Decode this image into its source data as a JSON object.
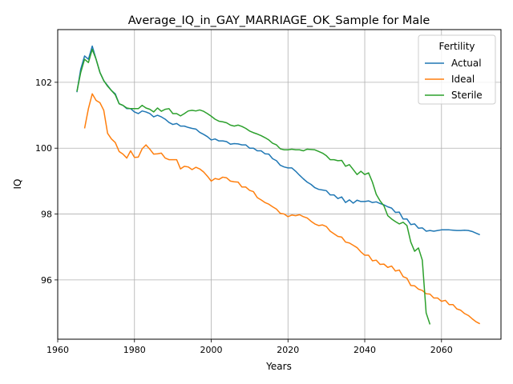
{
  "chart_data": {
    "type": "line",
    "title": "Average_IQ_in_GAY_MARRIAGE_OK_Sample for Male",
    "xlabel": "Years",
    "ylabel": "IQ",
    "xlim": [
      1960,
      2075.5
    ],
    "ylim": [
      94.2,
      103.6
    ],
    "xticks": [
      1960,
      1980,
      2000,
      2020,
      2040,
      2060
    ],
    "yticks": [
      96,
      98,
      100,
      102
    ],
    "grid": true,
    "legend": {
      "title": "Fertility",
      "placement": "top-right"
    },
    "series": [
      {
        "name": "Actual",
        "color": "#1f77b4",
        "points": [
          [
            1965,
            101.7
          ],
          [
            1966,
            102.4
          ],
          [
            1967,
            102.8
          ],
          [
            1968,
            102.7
          ],
          [
            1969,
            103.1
          ],
          [
            1970,
            102.7
          ],
          [
            1971,
            102.3
          ],
          [
            1972,
            102.05
          ],
          [
            1973,
            101.9
          ],
          [
            1974,
            101.75
          ],
          [
            1975,
            101.65
          ],
          [
            1976,
            101.35
          ],
          [
            1977,
            101.3
          ],
          [
            1978,
            101.2
          ],
          [
            1979,
            101.2
          ],
          [
            1980,
            101.1
          ],
          [
            1981,
            101.05
          ],
          [
            1982,
            101.13
          ],
          [
            1983,
            101.1
          ],
          [
            1984,
            101.05
          ],
          [
            1985,
            100.95
          ],
          [
            1986,
            101.0
          ],
          [
            1987,
            100.95
          ],
          [
            1988,
            100.88
          ],
          [
            1989,
            100.78
          ],
          [
            1990,
            100.72
          ],
          [
            1991,
            100.75
          ],
          [
            1992,
            100.67
          ],
          [
            1993,
            100.67
          ],
          [
            1994,
            100.63
          ],
          [
            1995,
            100.6
          ],
          [
            1996,
            100.58
          ],
          [
            1997,
            100.48
          ],
          [
            1998,
            100.42
          ],
          [
            1999,
            100.35
          ],
          [
            2000,
            100.25
          ],
          [
            2001,
            100.28
          ],
          [
            2002,
            100.22
          ],
          [
            2003,
            100.22
          ],
          [
            2004,
            100.2
          ],
          [
            2005,
            100.12
          ],
          [
            2006,
            100.14
          ],
          [
            2007,
            100.13
          ],
          [
            2008,
            100.1
          ],
          [
            2009,
            100.1
          ],
          [
            2010,
            100.0
          ],
          [
            2011,
            100.0
          ],
          [
            2012,
            99.92
          ],
          [
            2013,
            99.92
          ],
          [
            2014,
            99.83
          ],
          [
            2015,
            99.82
          ],
          [
            2016,
            99.68
          ],
          [
            2017,
            99.62
          ],
          [
            2018,
            99.48
          ],
          [
            2019,
            99.43
          ],
          [
            2020,
            99.4
          ],
          [
            2021,
            99.4
          ],
          [
            2022,
            99.3
          ],
          [
            2023,
            99.18
          ],
          [
            2024,
            99.07
          ],
          [
            2025,
            98.97
          ],
          [
            2026,
            98.9
          ],
          [
            2027,
            98.8
          ],
          [
            2028,
            98.75
          ],
          [
            2029,
            98.73
          ],
          [
            2030,
            98.71
          ],
          [
            2031,
            98.58
          ],
          [
            2032,
            98.58
          ],
          [
            2033,
            98.47
          ],
          [
            2034,
            98.52
          ],
          [
            2035,
            98.35
          ],
          [
            2036,
            98.43
          ],
          [
            2037,
            98.33
          ],
          [
            2038,
            98.42
          ],
          [
            2039,
            98.38
          ],
          [
            2040,
            98.38
          ],
          [
            2041,
            98.4
          ],
          [
            2042,
            98.35
          ],
          [
            2043,
            98.37
          ],
          [
            2044,
            98.32
          ],
          [
            2045,
            98.28
          ],
          [
            2046,
            98.22
          ],
          [
            2047,
            98.18
          ],
          [
            2048,
            98.05
          ],
          [
            2049,
            98.06
          ],
          [
            2050,
            97.85
          ],
          [
            2051,
            97.85
          ],
          [
            2052,
            97.68
          ],
          [
            2053,
            97.7
          ],
          [
            2054,
            97.57
          ],
          [
            2055,
            97.58
          ],
          [
            2056,
            97.48
          ],
          [
            2057,
            97.5
          ],
          [
            2058,
            97.48
          ],
          [
            2059,
            97.5
          ],
          [
            2060,
            97.52
          ],
          [
            2061,
            97.52
          ],
          [
            2062,
            97.52
          ],
          [
            2063,
            97.51
          ],
          [
            2064,
            97.5
          ],
          [
            2065,
            97.5
          ],
          [
            2066,
            97.51
          ],
          [
            2067,
            97.5
          ],
          [
            2068,
            97.47
          ],
          [
            2069,
            97.42
          ],
          [
            2070,
            97.37
          ]
        ]
      },
      {
        "name": "Ideal",
        "color": "#ff7f0e",
        "points": [
          [
            1967,
            100.6
          ],
          [
            1968,
            101.2
          ],
          [
            1969,
            101.65
          ],
          [
            1970,
            101.45
          ],
          [
            1971,
            101.38
          ],
          [
            1972,
            101.15
          ],
          [
            1973,
            100.45
          ],
          [
            1974,
            100.28
          ],
          [
            1975,
            100.17
          ],
          [
            1976,
            99.9
          ],
          [
            1977,
            99.82
          ],
          [
            1978,
            99.7
          ],
          [
            1979,
            99.92
          ],
          [
            1980,
            99.72
          ],
          [
            1981,
            99.73
          ],
          [
            1982,
            99.98
          ],
          [
            1983,
            100.1
          ],
          [
            1984,
            99.97
          ],
          [
            1985,
            99.82
          ],
          [
            1986,
            99.83
          ],
          [
            1987,
            99.85
          ],
          [
            1988,
            99.7
          ],
          [
            1989,
            99.65
          ],
          [
            1990,
            99.65
          ],
          [
            1991,
            99.65
          ],
          [
            1992,
            99.37
          ],
          [
            1993,
            99.45
          ],
          [
            1994,
            99.43
          ],
          [
            1995,
            99.35
          ],
          [
            1996,
            99.42
          ],
          [
            1997,
            99.37
          ],
          [
            1998,
            99.28
          ],
          [
            1999,
            99.15
          ],
          [
            2000,
            99.0
          ],
          [
            2001,
            99.08
          ],
          [
            2002,
            99.05
          ],
          [
            2003,
            99.12
          ],
          [
            2004,
            99.1
          ],
          [
            2005,
            99.0
          ],
          [
            2006,
            98.98
          ],
          [
            2007,
            98.97
          ],
          [
            2008,
            98.82
          ],
          [
            2009,
            98.82
          ],
          [
            2010,
            98.72
          ],
          [
            2011,
            98.68
          ],
          [
            2012,
            98.5
          ],
          [
            2013,
            98.43
          ],
          [
            2014,
            98.35
          ],
          [
            2015,
            98.3
          ],
          [
            2016,
            98.22
          ],
          [
            2017,
            98.15
          ],
          [
            2018,
            98.02
          ],
          [
            2019,
            98.0
          ],
          [
            2020,
            97.92
          ],
          [
            2021,
            97.97
          ],
          [
            2022,
            97.95
          ],
          [
            2023,
            97.98
          ],
          [
            2024,
            97.92
          ],
          [
            2025,
            97.88
          ],
          [
            2026,
            97.78
          ],
          [
            2027,
            97.7
          ],
          [
            2028,
            97.65
          ],
          [
            2029,
            97.67
          ],
          [
            2030,
            97.62
          ],
          [
            2031,
            97.48
          ],
          [
            2032,
            97.4
          ],
          [
            2033,
            97.32
          ],
          [
            2034,
            97.3
          ],
          [
            2035,
            97.15
          ],
          [
            2036,
            97.12
          ],
          [
            2037,
            97.05
          ],
          [
            2038,
            96.98
          ],
          [
            2039,
            96.85
          ],
          [
            2040,
            96.75
          ],
          [
            2041,
            96.75
          ],
          [
            2042,
            96.58
          ],
          [
            2043,
            96.6
          ],
          [
            2044,
            96.47
          ],
          [
            2045,
            96.48
          ],
          [
            2046,
            96.38
          ],
          [
            2047,
            96.42
          ],
          [
            2048,
            96.27
          ],
          [
            2049,
            96.3
          ],
          [
            2050,
            96.1
          ],
          [
            2051,
            96.05
          ],
          [
            2052,
            95.83
          ],
          [
            2053,
            95.82
          ],
          [
            2054,
            95.72
          ],
          [
            2055,
            95.68
          ],
          [
            2056,
            95.58
          ],
          [
            2057,
            95.57
          ],
          [
            2058,
            95.45
          ],
          [
            2059,
            95.45
          ],
          [
            2060,
            95.35
          ],
          [
            2061,
            95.38
          ],
          [
            2062,
            95.25
          ],
          [
            2063,
            95.25
          ],
          [
            2064,
            95.12
          ],
          [
            2065,
            95.08
          ],
          [
            2066,
            94.98
          ],
          [
            2067,
            94.92
          ],
          [
            2068,
            94.82
          ],
          [
            2069,
            94.73
          ],
          [
            2070,
            94.67
          ]
        ]
      },
      {
        "name": "Sterile",
        "color": "#2ca02c",
        "points": [
          [
            1965,
            101.72
          ],
          [
            1966,
            102.3
          ],
          [
            1967,
            102.7
          ],
          [
            1968,
            102.6
          ],
          [
            1969,
            103.0
          ],
          [
            1970,
            102.7
          ],
          [
            1971,
            102.3
          ],
          [
            1972,
            102.05
          ],
          [
            1973,
            101.88
          ],
          [
            1974,
            101.75
          ],
          [
            1975,
            101.62
          ],
          [
            1976,
            101.35
          ],
          [
            1977,
            101.3
          ],
          [
            1978,
            101.22
          ],
          [
            1979,
            101.2
          ],
          [
            1980,
            101.2
          ],
          [
            1981,
            101.2
          ],
          [
            1982,
            101.3
          ],
          [
            1983,
            101.22
          ],
          [
            1984,
            101.18
          ],
          [
            1985,
            101.1
          ],
          [
            1986,
            101.22
          ],
          [
            1987,
            101.12
          ],
          [
            1988,
            101.18
          ],
          [
            1989,
            101.2
          ],
          [
            1990,
            101.05
          ],
          [
            1991,
            101.05
          ],
          [
            1992,
            100.98
          ],
          [
            1993,
            101.05
          ],
          [
            1994,
            101.13
          ],
          [
            1995,
            101.15
          ],
          [
            1996,
            101.13
          ],
          [
            1997,
            101.16
          ],
          [
            1998,
            101.12
          ],
          [
            1999,
            101.05
          ],
          [
            2000,
            100.97
          ],
          [
            2001,
            100.88
          ],
          [
            2002,
            100.82
          ],
          [
            2003,
            100.8
          ],
          [
            2004,
            100.77
          ],
          [
            2005,
            100.7
          ],
          [
            2006,
            100.67
          ],
          [
            2007,
            100.7
          ],
          [
            2008,
            100.66
          ],
          [
            2009,
            100.6
          ],
          [
            2010,
            100.52
          ],
          [
            2011,
            100.47
          ],
          [
            2012,
            100.43
          ],
          [
            2013,
            100.38
          ],
          [
            2014,
            100.32
          ],
          [
            2015,
            100.25
          ],
          [
            2016,
            100.15
          ],
          [
            2017,
            100.1
          ],
          [
            2018,
            99.98
          ],
          [
            2019,
            99.95
          ],
          [
            2020,
            99.95
          ],
          [
            2021,
            99.97
          ],
          [
            2022,
            99.95
          ],
          [
            2023,
            99.95
          ],
          [
            2024,
            99.92
          ],
          [
            2025,
            99.97
          ],
          [
            2026,
            99.96
          ],
          [
            2027,
            99.95
          ],
          [
            2028,
            99.9
          ],
          [
            2029,
            99.85
          ],
          [
            2030,
            99.77
          ],
          [
            2031,
            99.65
          ],
          [
            2032,
            99.65
          ],
          [
            2033,
            99.62
          ],
          [
            2034,
            99.63
          ],
          [
            2035,
            99.45
          ],
          [
            2036,
            99.5
          ],
          [
            2037,
            99.35
          ],
          [
            2038,
            99.2
          ],
          [
            2039,
            99.3
          ],
          [
            2040,
            99.2
          ],
          [
            2041,
            99.25
          ],
          [
            2042,
            98.97
          ],
          [
            2043,
            98.6
          ],
          [
            2044,
            98.4
          ],
          [
            2045,
            98.25
          ],
          [
            2046,
            97.95
          ],
          [
            2047,
            97.85
          ],
          [
            2048,
            97.77
          ],
          [
            2049,
            97.7
          ],
          [
            2050,
            97.75
          ],
          [
            2051,
            97.65
          ],
          [
            2052,
            97.15
          ],
          [
            2053,
            96.87
          ],
          [
            2054,
            96.97
          ],
          [
            2055,
            96.6
          ],
          [
            2056,
            95.0
          ],
          [
            2057,
            94.65
          ]
        ]
      }
    ]
  }
}
